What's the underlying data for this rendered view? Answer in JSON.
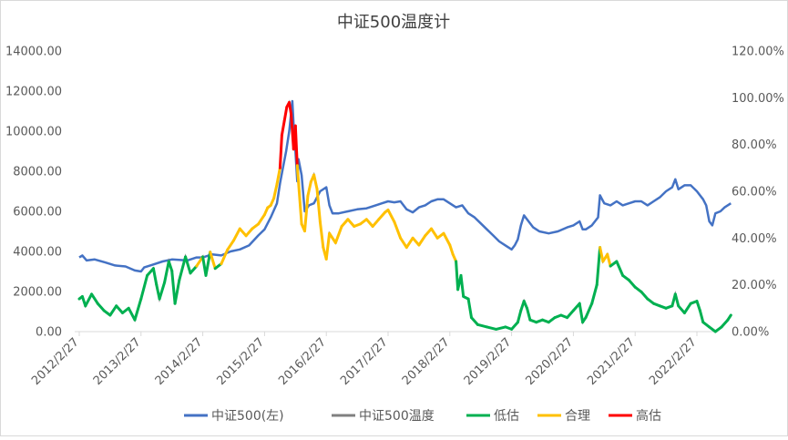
{
  "chart_data": {
    "type": "line",
    "title": "中证500温度计",
    "xlabel": "",
    "ylabel_left": "",
    "ylabel_right": "",
    "x_tick_labels": [
      "2012/2/27",
      "2013/2/27",
      "2014/2/27",
      "2015/2/27",
      "2016/2/27",
      "2017/2/27",
      "2018/2/27",
      "2019/2/27",
      "2020/2/27",
      "2021/2/27",
      "2022/2/27"
    ],
    "x_range": [
      2012.0,
      2022.55
    ],
    "ylim_left": [
      0,
      14000
    ],
    "left_ticks": [
      "0.00",
      "2000.00",
      "4000.00",
      "6000.00",
      "8000.00",
      "10000.00",
      "12000.00",
      "14000.00"
    ],
    "ylim_right": [
      0,
      1.2
    ],
    "right_ticks": [
      "0.00%",
      "20.00%",
      "40.00%",
      "60.00%",
      "80.00%",
      "100.00%",
      "120.00%"
    ],
    "grid": false,
    "legend_position": "bottom",
    "legend": [
      {
        "name": "中证500(左)",
        "color": "#4472C4"
      },
      {
        "name": "中证500温度",
        "color": "#808080"
      },
      {
        "name": "低估",
        "color": "#00B050"
      },
      {
        "name": "合理",
        "color": "#FFC000"
      },
      {
        "name": "高估",
        "color": "#FF0000"
      }
    ],
    "thresholds": {
      "low": 0.3,
      "high": 0.7
    },
    "index_series": {
      "name": "中证500(左)",
      "axis": "left",
      "color": "#4472C4",
      "points": [
        [
          2012.0,
          3700
        ],
        [
          2012.05,
          3800
        ],
        [
          2012.12,
          3550
        ],
        [
          2012.25,
          3600
        ],
        [
          2012.42,
          3450
        ],
        [
          2012.58,
          3300
        ],
        [
          2012.75,
          3250
        ],
        [
          2012.9,
          3050
        ],
        [
          2013.0,
          3000
        ],
        [
          2013.05,
          3200
        ],
        [
          2013.2,
          3350
        ],
        [
          2013.35,
          3500
        ],
        [
          2013.5,
          3600
        ],
        [
          2013.75,
          3550
        ],
        [
          2013.9,
          3700
        ],
        [
          2014.0,
          3700
        ],
        [
          2014.15,
          3850
        ],
        [
          2014.3,
          3800
        ],
        [
          2014.45,
          4000
        ],
        [
          2014.6,
          4100
        ],
        [
          2014.75,
          4300
        ],
        [
          2014.9,
          4800
        ],
        [
          2015.0,
          5100
        ],
        [
          2015.1,
          5700
        ],
        [
          2015.2,
          6400
        ],
        [
          2015.25,
          7400
        ],
        [
          2015.3,
          8200
        ],
        [
          2015.35,
          9000
        ],
        [
          2015.4,
          10000
        ],
        [
          2015.43,
          10900
        ],
        [
          2015.45,
          11500
        ],
        [
          2015.47,
          10300
        ],
        [
          2015.5,
          9000
        ],
        [
          2015.53,
          7500
        ],
        [
          2015.55,
          8600
        ],
        [
          2015.6,
          7800
        ],
        [
          2015.65,
          6000
        ],
        [
          2015.72,
          6300
        ],
        [
          2015.8,
          6400
        ],
        [
          2015.9,
          7000
        ],
        [
          2016.0,
          7200
        ],
        [
          2016.05,
          6300
        ],
        [
          2016.1,
          5900
        ],
        [
          2016.2,
          5900
        ],
        [
          2016.35,
          6000
        ],
        [
          2016.5,
          6100
        ],
        [
          2016.65,
          6150
        ],
        [
          2016.8,
          6300
        ],
        [
          2016.9,
          6400
        ],
        [
          2017.0,
          6500
        ],
        [
          2017.1,
          6450
        ],
        [
          2017.2,
          6500
        ],
        [
          2017.3,
          6100
        ],
        [
          2017.4,
          5950
        ],
        [
          2017.5,
          6200
        ],
        [
          2017.6,
          6300
        ],
        [
          2017.7,
          6500
        ],
        [
          2017.8,
          6600
        ],
        [
          2017.9,
          6600
        ],
        [
          2018.0,
          6400
        ],
        [
          2018.1,
          6200
        ],
        [
          2018.2,
          6300
        ],
        [
          2018.3,
          5900
        ],
        [
          2018.4,
          5700
        ],
        [
          2018.5,
          5400
        ],
        [
          2018.6,
          5100
        ],
        [
          2018.7,
          4800
        ],
        [
          2018.8,
          4500
        ],
        [
          2018.9,
          4300
        ],
        [
          2019.0,
          4100
        ],
        [
          2019.05,
          4300
        ],
        [
          2019.1,
          4600
        ],
        [
          2019.15,
          5300
        ],
        [
          2019.2,
          5800
        ],
        [
          2019.25,
          5600
        ],
        [
          2019.35,
          5200
        ],
        [
          2019.45,
          5000
        ],
        [
          2019.6,
          4900
        ],
        [
          2019.75,
          5000
        ],
        [
          2019.9,
          5200
        ],
        [
          2020.0,
          5300
        ],
        [
          2020.1,
          5500
        ],
        [
          2020.15,
          5100
        ],
        [
          2020.2,
          5100
        ],
        [
          2020.3,
          5300
        ],
        [
          2020.4,
          5700
        ],
        [
          2020.43,
          6800
        ],
        [
          2020.5,
          6400
        ],
        [
          2020.6,
          6300
        ],
        [
          2020.7,
          6500
        ],
        [
          2020.8,
          6300
        ],
        [
          2020.9,
          6400
        ],
        [
          2021.0,
          6500
        ],
        [
          2021.1,
          6500
        ],
        [
          2021.2,
          6300
        ],
        [
          2021.3,
          6500
        ],
        [
          2021.4,
          6700
        ],
        [
          2021.5,
          7000
        ],
        [
          2021.6,
          7200
        ],
        [
          2021.65,
          7600
        ],
        [
          2021.7,
          7100
        ],
        [
          2021.8,
          7300
        ],
        [
          2021.9,
          7300
        ],
        [
          2022.0,
          7000
        ],
        [
          2022.1,
          6600
        ],
        [
          2022.15,
          6300
        ],
        [
          2022.2,
          5500
        ],
        [
          2022.25,
          5300
        ],
        [
          2022.3,
          5900
        ],
        [
          2022.38,
          6000
        ],
        [
          2022.45,
          6200
        ],
        [
          2022.55,
          6400
        ]
      ]
    },
    "temperature_series": {
      "name": "中证500温度",
      "axis": "right",
      "color": "#808080",
      "points": [
        [
          2012.0,
          0.14
        ],
        [
          2012.05,
          0.15
        ],
        [
          2012.1,
          0.11
        ],
        [
          2012.2,
          0.16
        ],
        [
          2012.3,
          0.12
        ],
        [
          2012.4,
          0.09
        ],
        [
          2012.5,
          0.07
        ],
        [
          2012.6,
          0.11
        ],
        [
          2012.7,
          0.08
        ],
        [
          2012.8,
          0.1
        ],
        [
          2012.9,
          0.05
        ],
        [
          2013.0,
          0.14
        ],
        [
          2013.1,
          0.24
        ],
        [
          2013.2,
          0.27
        ],
        [
          2013.25,
          0.2
        ],
        [
          2013.3,
          0.14
        ],
        [
          2013.38,
          0.21
        ],
        [
          2013.45,
          0.3
        ],
        [
          2013.5,
          0.26
        ],
        [
          2013.55,
          0.12
        ],
        [
          2013.62,
          0.22
        ],
        [
          2013.72,
          0.32
        ],
        [
          2013.8,
          0.25
        ],
        [
          2013.9,
          0.28
        ],
        [
          2014.0,
          0.32
        ],
        [
          2014.05,
          0.24
        ],
        [
          2014.12,
          0.34
        ],
        [
          2014.2,
          0.27
        ],
        [
          2014.3,
          0.29
        ],
        [
          2014.4,
          0.35
        ],
        [
          2014.5,
          0.39
        ],
        [
          2014.6,
          0.44
        ],
        [
          2014.7,
          0.41
        ],
        [
          2014.8,
          0.44
        ],
        [
          2014.9,
          0.46
        ],
        [
          2015.0,
          0.5
        ],
        [
          2015.05,
          0.53
        ],
        [
          2015.1,
          0.54
        ],
        [
          2015.15,
          0.57
        ],
        [
          2015.2,
          0.63
        ],
        [
          2015.25,
          0.7
        ],
        [
          2015.28,
          0.84
        ],
        [
          2015.32,
          0.9
        ],
        [
          2015.36,
          0.96
        ],
        [
          2015.4,
          0.98
        ],
        [
          2015.43,
          0.93
        ],
        [
          2015.47,
          0.78
        ],
        [
          2015.5,
          0.88
        ],
        [
          2015.53,
          0.71
        ],
        [
          2015.56,
          0.6
        ],
        [
          2015.6,
          0.46
        ],
        [
          2015.65,
          0.43
        ],
        [
          2015.7,
          0.58
        ],
        [
          2015.75,
          0.64
        ],
        [
          2015.8,
          0.67
        ],
        [
          2015.85,
          0.61
        ],
        [
          2015.9,
          0.47
        ],
        [
          2015.95,
          0.36
        ],
        [
          2016.0,
          0.31
        ],
        [
          2016.05,
          0.42
        ],
        [
          2016.15,
          0.38
        ],
        [
          2016.25,
          0.45
        ],
        [
          2016.35,
          0.48
        ],
        [
          2016.45,
          0.45
        ],
        [
          2016.55,
          0.46
        ],
        [
          2016.65,
          0.48
        ],
        [
          2016.75,
          0.45
        ],
        [
          2016.85,
          0.48
        ],
        [
          2016.95,
          0.51
        ],
        [
          2017.0,
          0.52
        ],
        [
          2017.1,
          0.47
        ],
        [
          2017.2,
          0.4
        ],
        [
          2017.3,
          0.36
        ],
        [
          2017.4,
          0.4
        ],
        [
          2017.5,
          0.37
        ],
        [
          2017.6,
          0.41
        ],
        [
          2017.7,
          0.44
        ],
        [
          2017.8,
          0.4
        ],
        [
          2017.9,
          0.42
        ],
        [
          2018.0,
          0.37
        ],
        [
          2018.05,
          0.33
        ],
        [
          2018.1,
          0.3
        ],
        [
          2018.13,
          0.18
        ],
        [
          2018.18,
          0.24
        ],
        [
          2018.22,
          0.15
        ],
        [
          2018.3,
          0.14
        ],
        [
          2018.35,
          0.06
        ],
        [
          2018.45,
          0.03
        ],
        [
          2018.6,
          0.02
        ],
        [
          2018.75,
          0.01
        ],
        [
          2018.9,
          0.02
        ],
        [
          2019.0,
          0.01
        ],
        [
          2019.1,
          0.04
        ],
        [
          2019.15,
          0.09
        ],
        [
          2019.2,
          0.13
        ],
        [
          2019.25,
          0.1
        ],
        [
          2019.3,
          0.05
        ],
        [
          2019.4,
          0.04
        ],
        [
          2019.5,
          0.05
        ],
        [
          2019.6,
          0.04
        ],
        [
          2019.7,
          0.06
        ],
        [
          2019.8,
          0.07
        ],
        [
          2019.9,
          0.06
        ],
        [
          2020.0,
          0.09
        ],
        [
          2020.1,
          0.12
        ],
        [
          2020.15,
          0.04
        ],
        [
          2020.2,
          0.06
        ],
        [
          2020.3,
          0.12
        ],
        [
          2020.38,
          0.2
        ],
        [
          2020.43,
          0.36
        ],
        [
          2020.48,
          0.3
        ],
        [
          2020.55,
          0.33
        ],
        [
          2020.6,
          0.28
        ],
        [
          2020.7,
          0.3
        ],
        [
          2020.8,
          0.24
        ],
        [
          2020.9,
          0.22
        ],
        [
          2021.0,
          0.19
        ],
        [
          2021.1,
          0.17
        ],
        [
          2021.2,
          0.14
        ],
        [
          2021.3,
          0.12
        ],
        [
          2021.4,
          0.11
        ],
        [
          2021.5,
          0.1
        ],
        [
          2021.6,
          0.11
        ],
        [
          2021.65,
          0.16
        ],
        [
          2021.7,
          0.11
        ],
        [
          2021.8,
          0.08
        ],
        [
          2021.9,
          0.12
        ],
        [
          2022.0,
          0.13
        ],
        [
          2022.05,
          0.09
        ],
        [
          2022.1,
          0.04
        ],
        [
          2022.2,
          0.02
        ],
        [
          2022.3,
          0.0
        ],
        [
          2022.4,
          0.02
        ],
        [
          2022.5,
          0.05
        ],
        [
          2022.55,
          0.07
        ]
      ]
    }
  }
}
